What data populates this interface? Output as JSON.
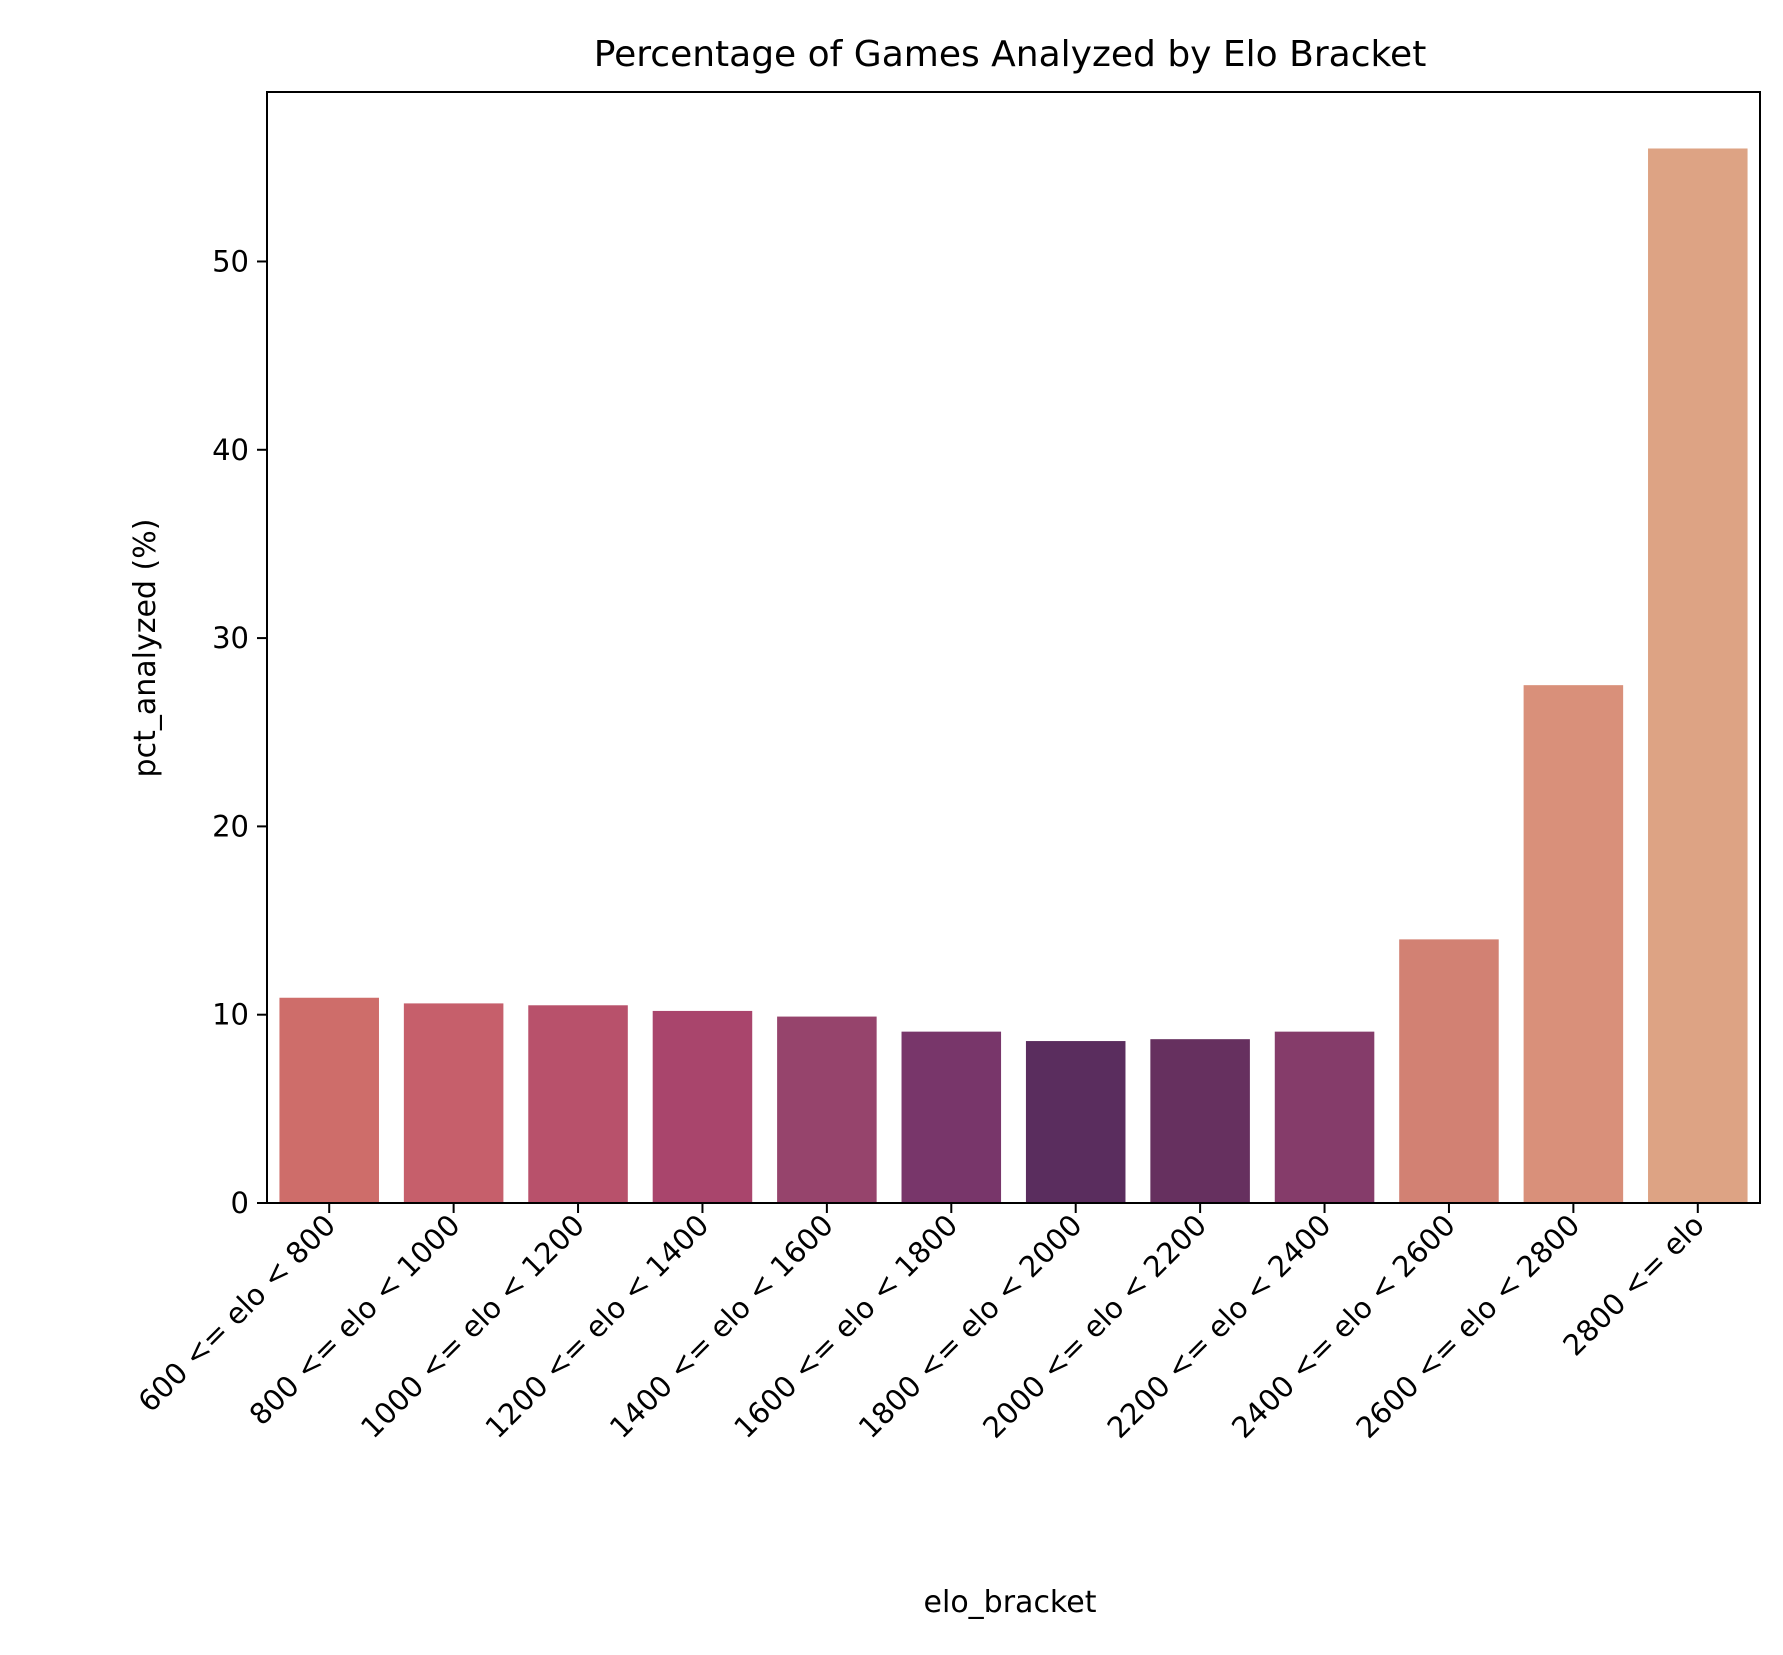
{
  "chart_data": {
    "type": "bar",
    "title": "Percentage of Games Analyzed by Elo Bracket",
    "xlabel": "elo_bracket",
    "ylabel": "pct_analyzed (%)",
    "ylim": [
      0,
      59
    ],
    "yticks": [
      0,
      10,
      20,
      30,
      40,
      50
    ],
    "grid": false,
    "categories": [
      "600 <= elo < 800",
      "800 <= elo < 1000",
      "1000 <= elo < 1200",
      "1200 <= elo < 1400",
      "1400 <= elo < 1600",
      "1600 <= elo < 1800",
      "1800 <= elo < 2000",
      "2000 <= elo < 2200",
      "2200 <= elo < 2400",
      "2400 <= elo < 2600",
      "2600 <= elo < 2800",
      "2800 <= elo"
    ],
    "values": [
      10.9,
      10.6,
      10.5,
      10.2,
      9.9,
      9.1,
      8.6,
      8.7,
      9.1,
      14.0,
      27.5,
      56.0
    ],
    "colors": [
      "#ce6d6a",
      "#c65f6b",
      "#b8516b",
      "#a9456c",
      "#96446c",
      "#78366a",
      "#5a2d5e",
      "#66305f",
      "#853c6a",
      "#d28173",
      "#d9907a",
      "#dda384"
    ]
  }
}
